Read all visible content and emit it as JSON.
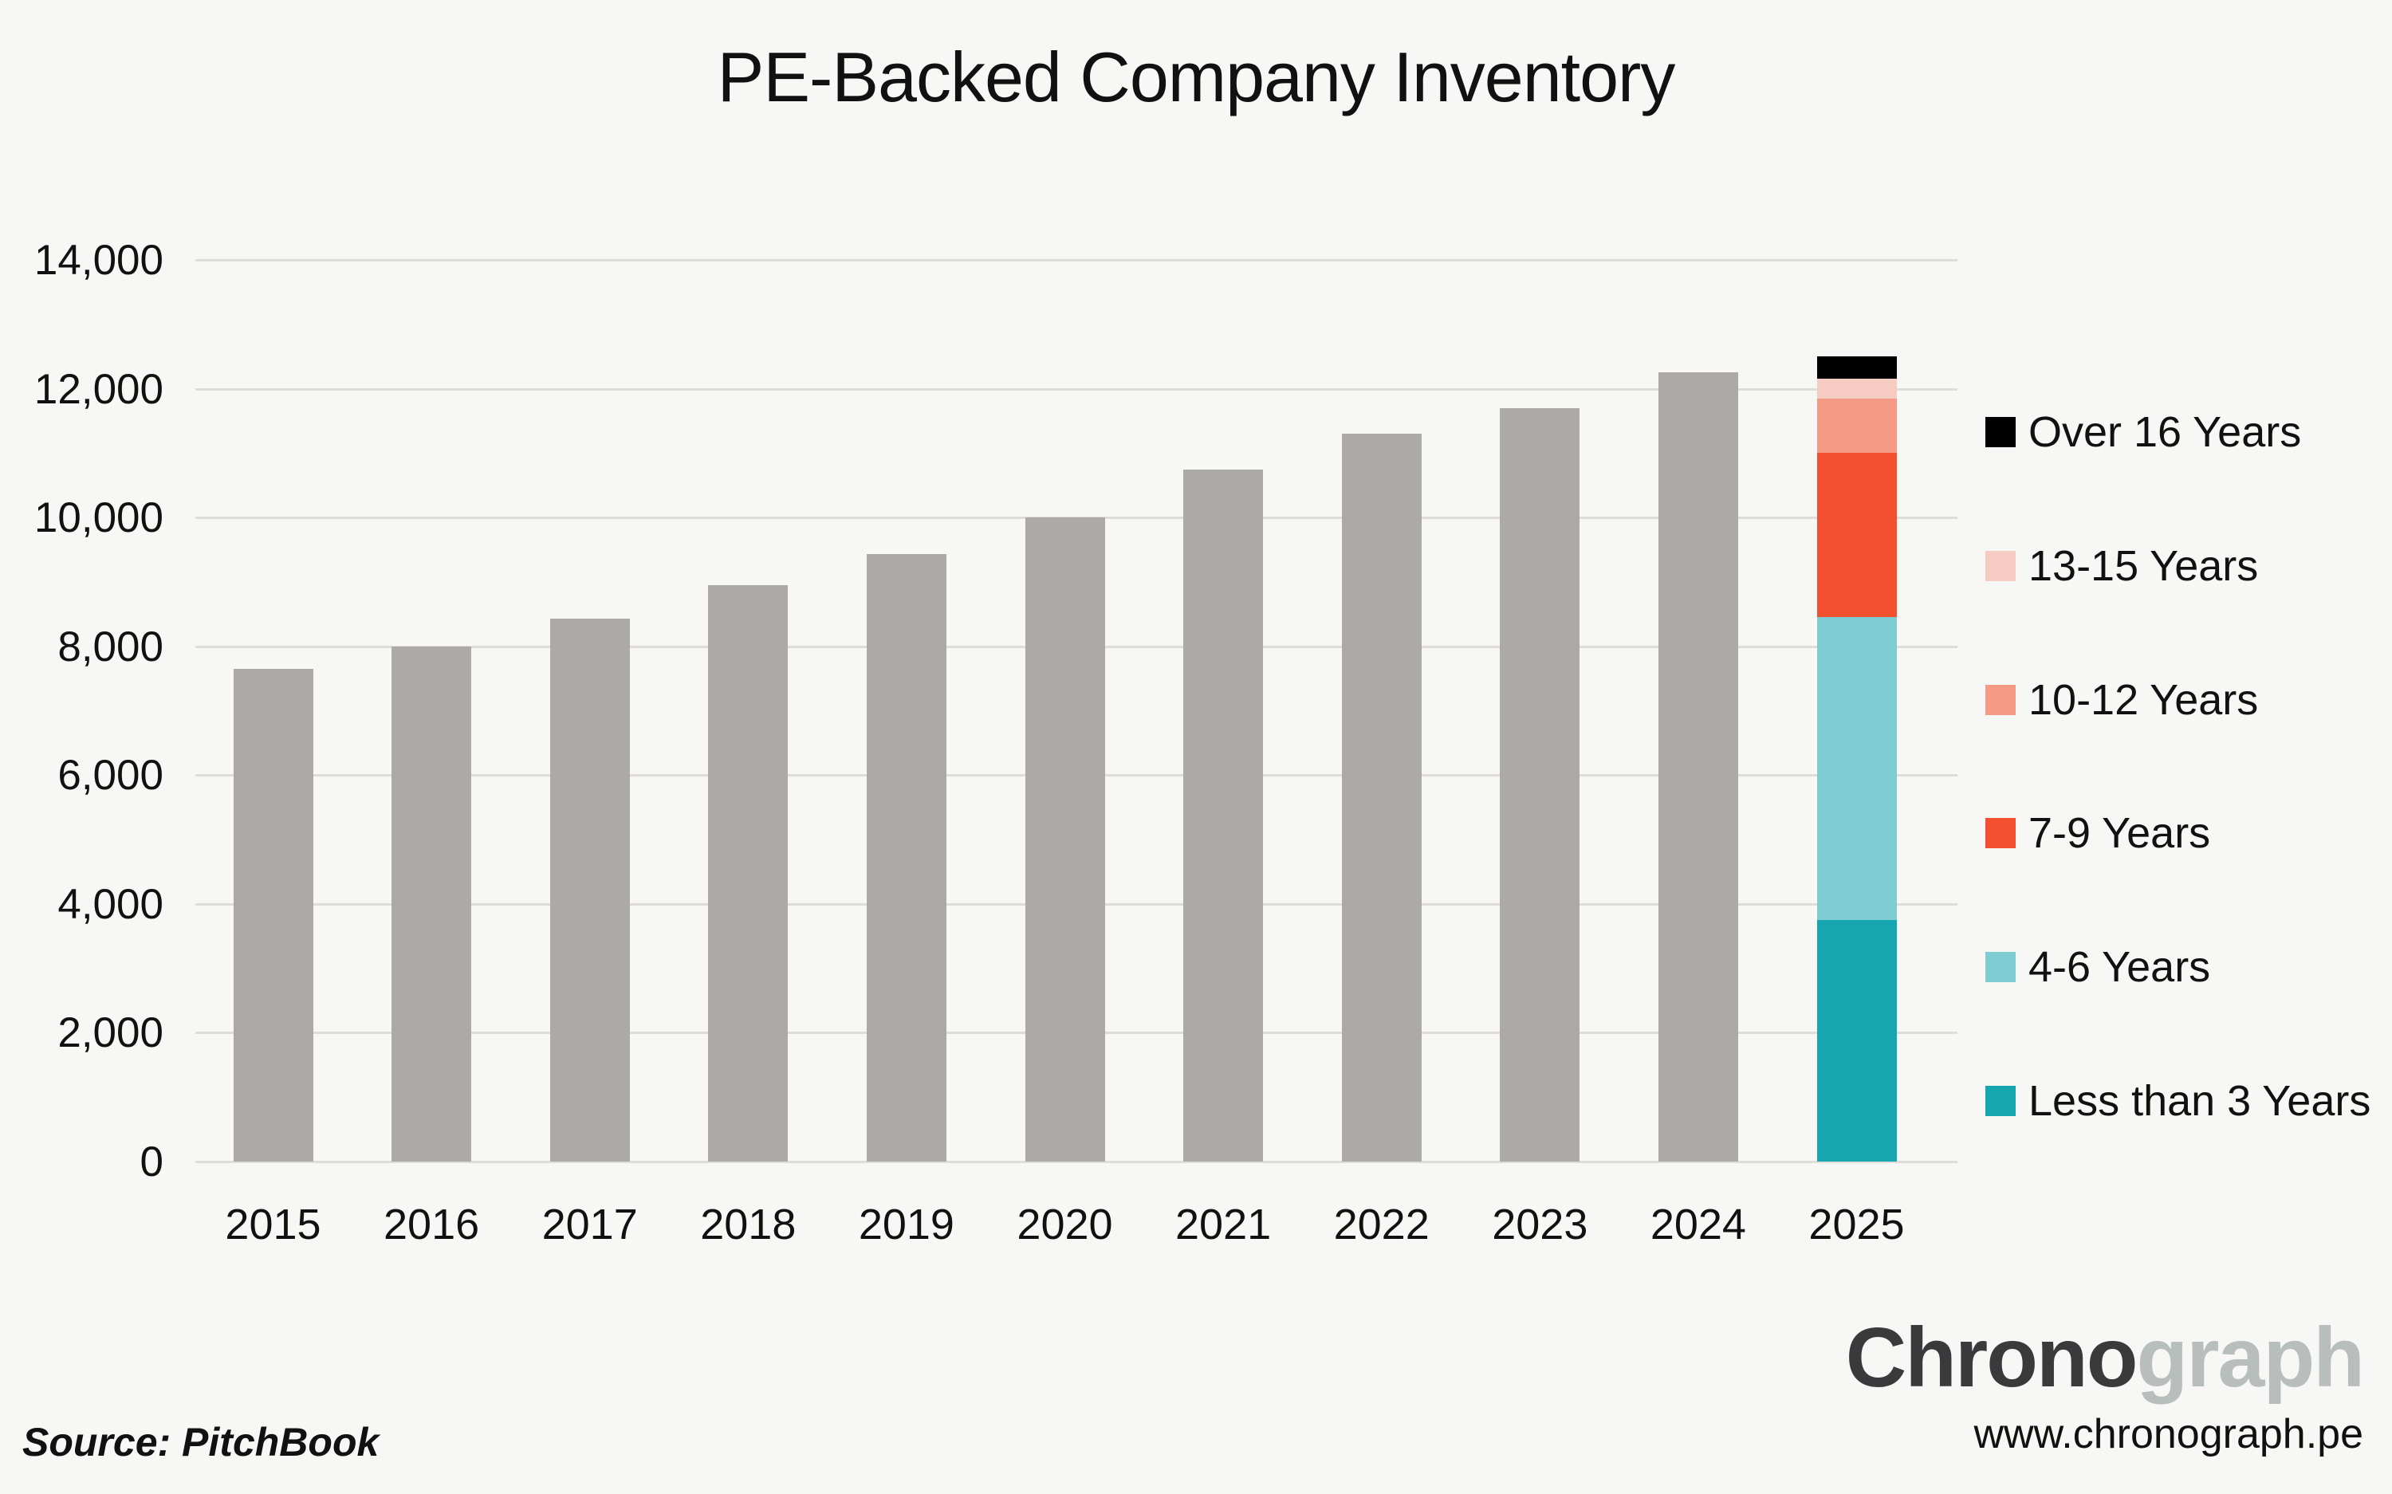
{
  "title": "PE-Backed Company Inventory",
  "source_note": "Source: PitchBook",
  "branding": {
    "logo_bold": "Chrono",
    "logo_light": "graph",
    "website": "www.chronograph.pe"
  },
  "colors": {
    "background": "#F7F7F5",
    "gridline": "#DEDDDA",
    "bar_gray": "#ACA9A6",
    "text": "#111111",
    "logo_dark": "#3A3A3C",
    "logo_light": "#B7BEBC"
  },
  "legend": {
    "items": [
      {
        "label": "Over 16 Years",
        "color": "#000000"
      },
      {
        "label": "13-15 Years",
        "color": "#F6CBC1"
      },
      {
        "label": "10-12 Years",
        "color": "#F59B85"
      },
      {
        "label": "7-9 Years",
        "color": "#F2502F"
      },
      {
        "label": "4-6 Years",
        "color": "#7FCDD3"
      },
      {
        "label": "Less than 3 Years",
        "color": "#16A6AF"
      }
    ]
  },
  "chart_data": {
    "type": "bar",
    "title": "PE-Backed Company Inventory",
    "categories": [
      "2015",
      "2016",
      "2017",
      "2018",
      "2019",
      "2020",
      "2021",
      "2022",
      "2023",
      "2024",
      "2025"
    ],
    "xlabel": "",
    "ylabel": "",
    "ylim": [
      0,
      14000
    ],
    "yticks": [
      0,
      2000,
      4000,
      6000,
      8000,
      10000,
      12000,
      14000
    ],
    "grid": true,
    "legend_position": "right",
    "total_bar_color": "#ACA9A6",
    "totals": [
      7650,
      8000,
      8430,
      8950,
      9430,
      10000,
      10750,
      11300,
      11700,
      12250,
      12500
    ],
    "stacked_category": "2025",
    "stacked_segments_bottom_up": [
      {
        "label": "Less than 3 Years",
        "value": 3750,
        "color": "#16A6AF"
      },
      {
        "label": "4-6 Years",
        "value": 4700,
        "color": "#7FCDD3"
      },
      {
        "label": "7-9 Years",
        "value": 2550,
        "color": "#F2502F"
      },
      {
        "label": "10-12 Years",
        "value": 850,
        "color": "#F59B85"
      },
      {
        "label": "13-15 Years",
        "value": 300,
        "color": "#F6CBC1"
      },
      {
        "label": "Over 16 Years",
        "value": 350,
        "color": "#000000"
      }
    ]
  }
}
